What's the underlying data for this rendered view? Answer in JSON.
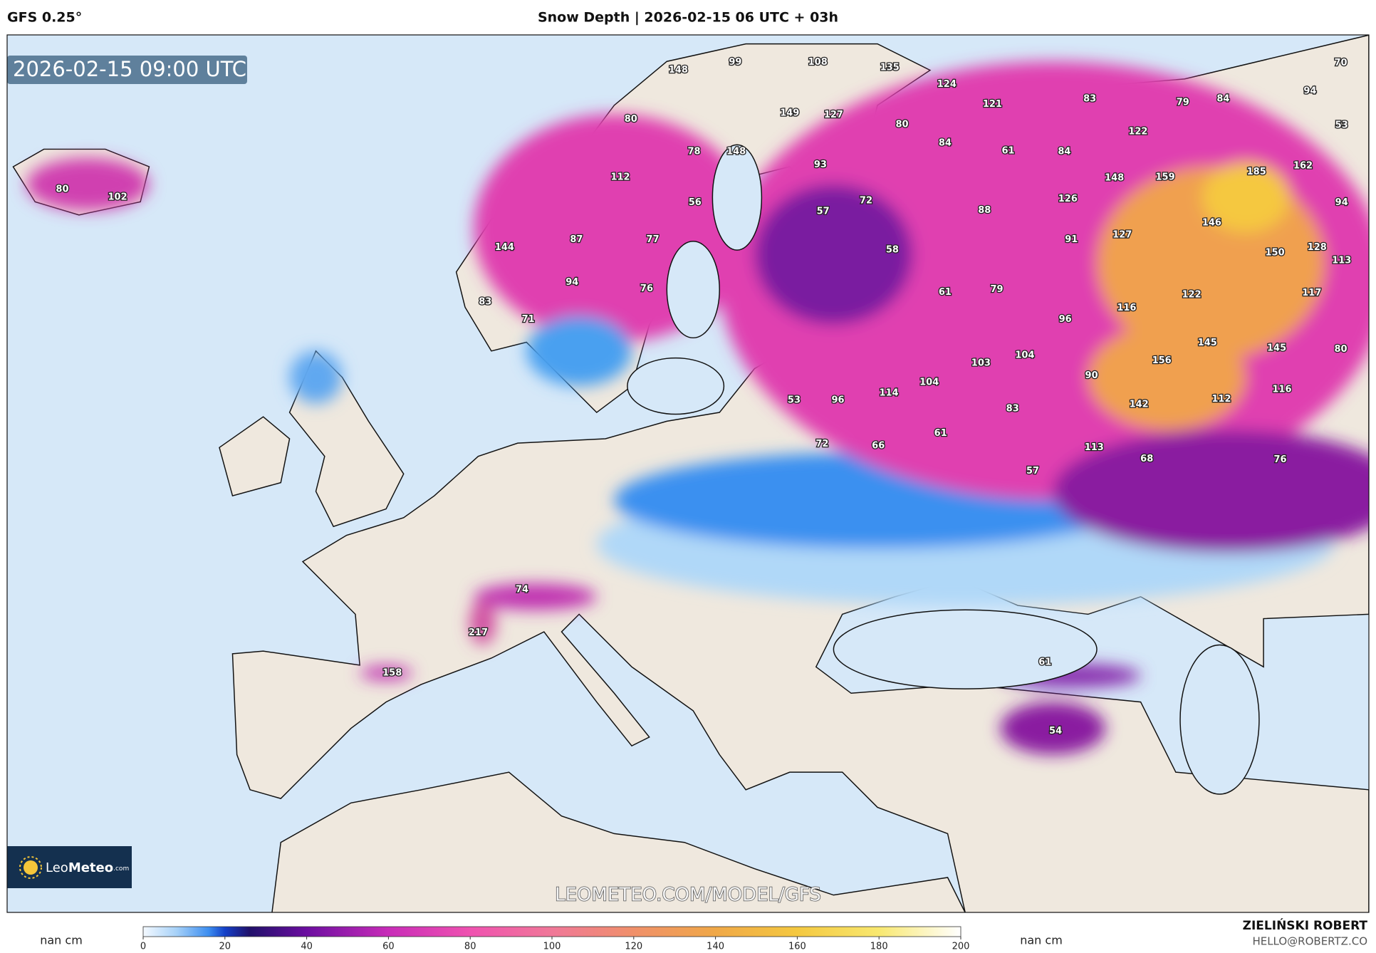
{
  "header": {
    "model": "GFS 0.25°",
    "title": "Snow Depth | 2026-02-15 06 UTC + 03h"
  },
  "map": {
    "valid_time": "2026-02-15 09:00 UTC",
    "watermark": "LEOMETEO.COM/MODEL/GFS",
    "logo": {
      "name_light": "Leo",
      "name_bold": "Meteo",
      "suffix": ".com"
    },
    "spot_values": [
      148,
      99,
      108,
      135,
      124,
      121,
      83,
      79,
      84,
      94,
      70,
      53,
      80,
      149,
      127,
      80,
      84,
      61,
      84,
      122,
      78,
      148,
      93,
      112,
      148,
      159,
      185,
      162,
      56,
      57,
      72,
      88,
      126,
      94,
      144,
      87,
      77,
      91,
      127,
      146,
      58,
      150,
      128,
      113,
      94,
      76,
      61,
      79,
      122,
      117,
      83,
      116,
      71,
      96,
      103,
      104,
      145,
      145,
      80,
      156,
      90,
      104,
      114,
      116,
      112,
      53,
      96,
      83,
      142,
      61,
      72,
      66,
      113,
      68,
      76,
      57,
      80,
      102,
      74,
      217,
      158,
      61,
      54
    ]
  },
  "colorbar": {
    "range": [
      0,
      200
    ],
    "ticks": [
      0,
      20,
      40,
      60,
      80,
      100,
      120,
      140,
      160,
      180,
      200
    ],
    "nan_left": "nan cm",
    "nan_right": "nan cm"
  },
  "footer": {
    "author": "ZIELIŃSKI ROBERT",
    "email": "HELLO@ROBERTZ.CO"
  }
}
